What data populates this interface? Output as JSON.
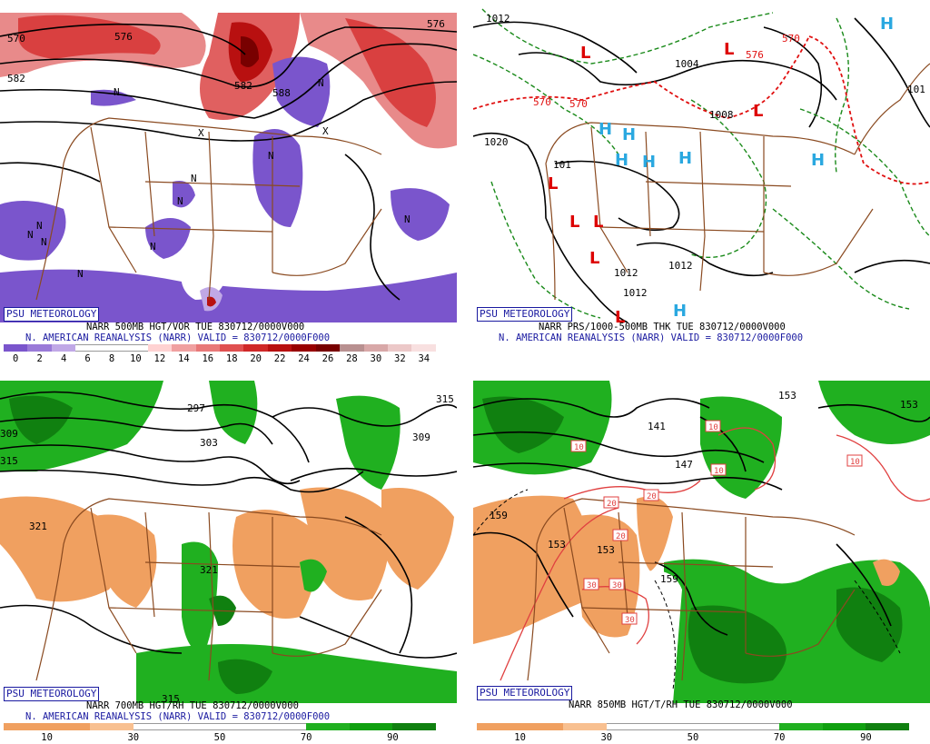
{
  "panels": [
    {
      "badge": "PSU METEOROLOGY",
      "line1": "NARR 500MB HGT/VOR TUE 830712/0000V000",
      "line2": "N. AMERICAN REANALYSIS (NARR) VALID = 830712/0000F000",
      "colorbar": {
        "ticks": [
          "0",
          "2",
          "4",
          "6",
          "8",
          "10",
          "12",
          "14",
          "16",
          "18",
          "20",
          "22",
          "24",
          "26",
          "28",
          "30",
          "32",
          "34"
        ],
        "colors": [
          "#7a55cc",
          "#9a7ad8",
          "#c0a8e6",
          "#ffffff",
          "#ffffff",
          "#ffffff",
          "#ffd2d2",
          "#f0a0a0",
          "#e87878",
          "#e05050",
          "#d02828",
          "#b81010",
          "#980000",
          "#780000",
          "#b89090",
          "#d8a8a8",
          "#ecc8c8",
          "#f8e0e0"
        ]
      },
      "map_labels": [
        "570",
        "582",
        "576",
        "570",
        "582",
        "576",
        "588",
        "N",
        "N",
        "N",
        "N",
        "N",
        "N",
        "N",
        "N",
        "N",
        "N",
        "N",
        "X",
        "X"
      ]
    },
    {
      "badge": "PSU METEOROLOGY",
      "line1": "NARR PRS/1000-500MB THK TUE 830712/0000V000",
      "line2": "N. AMERICAN REANALYSIS (NARR) VALID = 830712/0000F000",
      "map_labels": [
        "1012",
        "1020",
        "1004",
        "1012",
        "1012",
        "1012",
        "1008",
        "101",
        "101",
        "570",
        "570",
        "576",
        "570"
      ],
      "highs": [
        "H",
        "H",
        "H",
        "H",
        "H",
        "H",
        "H"
      ],
      "lows": [
        "L",
        "L",
        "L",
        "L",
        "L",
        "L",
        "L",
        "L"
      ]
    },
    {
      "badge": "PSU METEOROLOGY",
      "line1": "NARR 700MB HGT/RH TUE 830712/0000V000",
      "line2": "N. AMERICAN REANALYSIS (NARR) VALID = 830712/0000F000",
      "colorbar": {
        "ticks": [
          "10",
          "30",
          "50",
          "70",
          "90"
        ],
        "colors": [
          "#f0a060",
          "#f0a060",
          "#f8c090",
          "#ffffff",
          "#ffffff",
          "#ffffff",
          "#ffffff",
          "#20b020",
          "#10a010",
          "#108010"
        ]
      },
      "map_labels": [
        "297",
        "303",
        "309",
        "315",
        "309",
        "321",
        "321",
        "315",
        "315"
      ]
    },
    {
      "badge": "PSU METEOROLOGY",
      "line1": "NARR 850MB HGT/T/RH TUE 830712/0000V000",
      "colorbar": {
        "ticks": [
          "10",
          "30",
          "50",
          "70",
          "90"
        ],
        "colors": [
          "#f0a060",
          "#f0a060",
          "#f8c090",
          "#ffffff",
          "#ffffff",
          "#ffffff",
          "#ffffff",
          "#20b020",
          "#10a010",
          "#108010"
        ]
      },
      "map_labels": [
        "141",
        "147",
        "153",
        "153",
        "159",
        "159",
        "153",
        "153"
      ],
      "temp_boxes": [
        "10",
        "10",
        "10",
        "10",
        "20",
        "20",
        "20",
        "30",
        "30",
        "30"
      ]
    }
  ]
}
